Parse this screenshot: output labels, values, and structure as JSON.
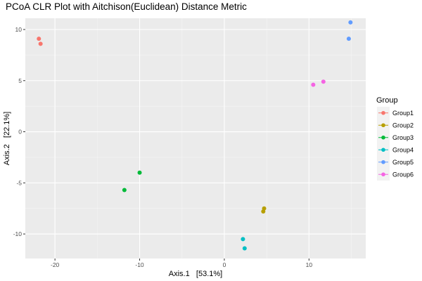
{
  "chart_data": {
    "type": "scatter",
    "title": "PCoA CLR Plot with Aitchison(Euclidean) Distance Metric",
    "xlabel": "Axis.1   [53.1%]",
    "ylabel": "Axis.2   [22.1%]",
    "xlim": [
      -23.5,
      16.7
    ],
    "ylim": [
      -12.4,
      11.1
    ],
    "xticks": [
      -20,
      -10,
      0,
      10
    ],
    "xtick_labels": [
      "-20",
      "-10",
      "0",
      "10"
    ],
    "yticks": [
      -10,
      -5,
      0,
      5,
      10
    ],
    "ytick_labels": [
      "-10",
      "-5",
      "0",
      "5",
      "10"
    ],
    "grid": true,
    "legend": {
      "title": "Group",
      "position": "right"
    },
    "series": [
      {
        "name": "Group1",
        "color": "#F8766D",
        "points": [
          [
            -21.9,
            9.1
          ],
          [
            -21.7,
            8.6
          ]
        ]
      },
      {
        "name": "Group2",
        "color": "#B79F00",
        "points": [
          [
            4.7,
            -7.5
          ],
          [
            4.6,
            -7.8
          ]
        ]
      },
      {
        "name": "Group3",
        "color": "#00BA38",
        "points": [
          [
            -10.0,
            -4.0
          ],
          [
            -11.8,
            -5.7
          ]
        ]
      },
      {
        "name": "Group4",
        "color": "#00BFC4",
        "points": [
          [
            2.2,
            -10.5
          ],
          [
            2.4,
            -11.4
          ]
        ]
      },
      {
        "name": "Group5",
        "color": "#619CFF",
        "points": [
          [
            14.9,
            10.7
          ],
          [
            14.7,
            9.1
          ]
        ]
      },
      {
        "name": "Group6",
        "color": "#F564E3",
        "points": [
          [
            10.5,
            4.6
          ],
          [
            11.7,
            4.9
          ]
        ]
      }
    ]
  }
}
